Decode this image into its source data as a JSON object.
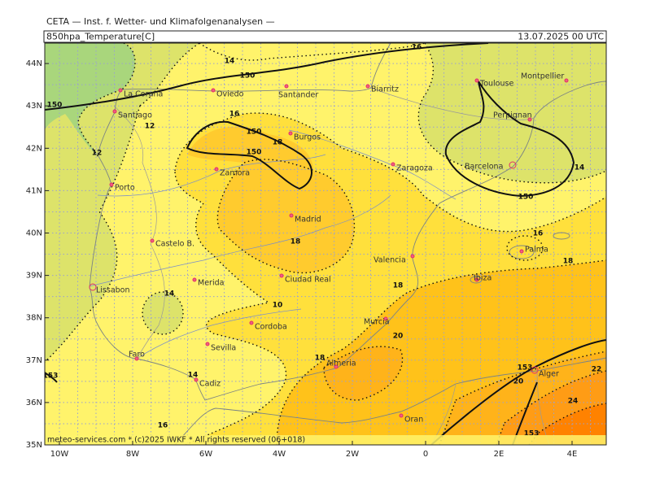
{
  "header": {
    "title": "CETA — Inst. f. Wetter- und Klimafolgenanalysen —",
    "field": "850hpa_Temperature[C]",
    "valid": "13.07.2025 00 UTC"
  },
  "axes": {
    "lat_labels": [
      "44N",
      "43N",
      "42N",
      "41N",
      "40N",
      "39N",
      "38N",
      "37N",
      "36N",
      "35N"
    ],
    "lon_labels": [
      "10W",
      "8W",
      "6W",
      "4W",
      "2W",
      "0",
      "2E",
      "4E"
    ]
  },
  "cities": [
    "La Coruna",
    "Santiago",
    "Oviedo",
    "Santander",
    "Biarritz",
    "Toulouse",
    "Montpellier",
    "Perpignan",
    "Burgos",
    "Barcelona",
    "Zaragoza",
    "Zamora",
    "Porto",
    "Madrid",
    "Castelo B.",
    "Palma",
    "Valencia",
    "Merida",
    "Ciudad Real",
    "Ibiza",
    "Lissabon",
    "Murcia",
    "Cordoba",
    "Sevilla",
    "Faro",
    "Almeria",
    "Alger",
    "Cadiz",
    "Oran"
  ],
  "contour_labels": [
    "14",
    "150",
    "16",
    "150",
    "12",
    "12",
    "16",
    "150",
    "18",
    "150",
    "14",
    "150",
    "16",
    "18",
    "18",
    "18",
    "14",
    "10",
    "20",
    "18",
    "14",
    "153",
    "20",
    "22",
    "24",
    "16",
    "153",
    "153"
  ],
  "footer": "meteo-services.com * (c)2025 IWKF * All rights reserved (06+018)"
}
